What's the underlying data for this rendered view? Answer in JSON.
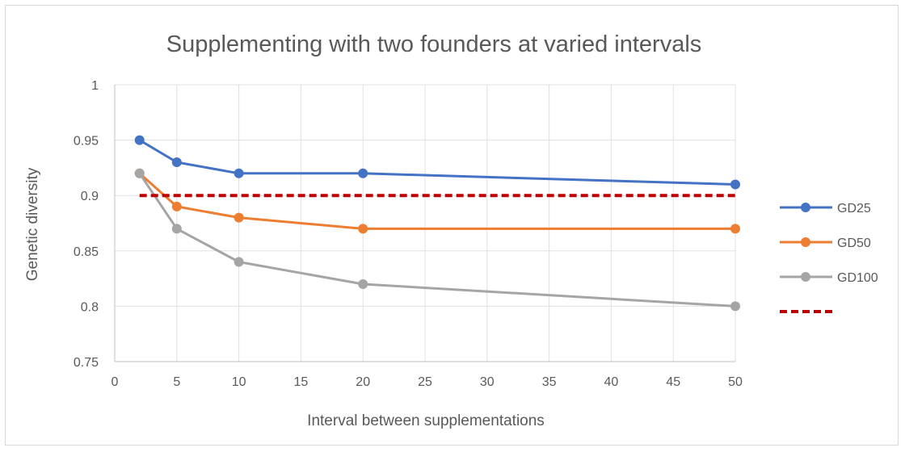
{
  "chart_data": {
    "type": "line",
    "title": "Supplementing with two founders at varied intervals",
    "xlabel": "Interval between supplementations",
    "ylabel": "Genetic diversity",
    "xlim": [
      0,
      50
    ],
    "ylim": [
      0.75,
      1
    ],
    "x_ticks": [
      "0",
      "5",
      "10",
      "15",
      "20",
      "25",
      "30",
      "35",
      "40",
      "45",
      "50"
    ],
    "y_ticks": [
      "0.75",
      "0.8",
      "0.85",
      "0.9",
      "0.95",
      "1"
    ],
    "x_tick_values": [
      0,
      5,
      10,
      15,
      20,
      25,
      30,
      35,
      40,
      45,
      50
    ],
    "y_tick_values": [
      0.75,
      0.8,
      0.85,
      0.9,
      0.95,
      1
    ],
    "x": [
      2,
      5,
      10,
      20,
      50
    ],
    "grid": true,
    "legend_position": "right",
    "series": [
      {
        "name": "GD25",
        "values": [
          0.95,
          0.93,
          0.92,
          0.92,
          0.91
        ],
        "color": "#4472C4",
        "style": "solid"
      },
      {
        "name": "GD50",
        "values": [
          0.92,
          0.89,
          0.88,
          0.87,
          0.87
        ],
        "color": "#ED7D31",
        "style": "solid"
      },
      {
        "name": "GD100",
        "values": [
          0.92,
          0.87,
          0.84,
          0.82,
          0.8
        ],
        "color": "#A5A5A5",
        "style": "solid"
      },
      {
        "name": "",
        "x": [
          2,
          50
        ],
        "values": [
          0.9,
          0.9
        ],
        "color": "#C00000",
        "style": "dashed"
      }
    ]
  }
}
